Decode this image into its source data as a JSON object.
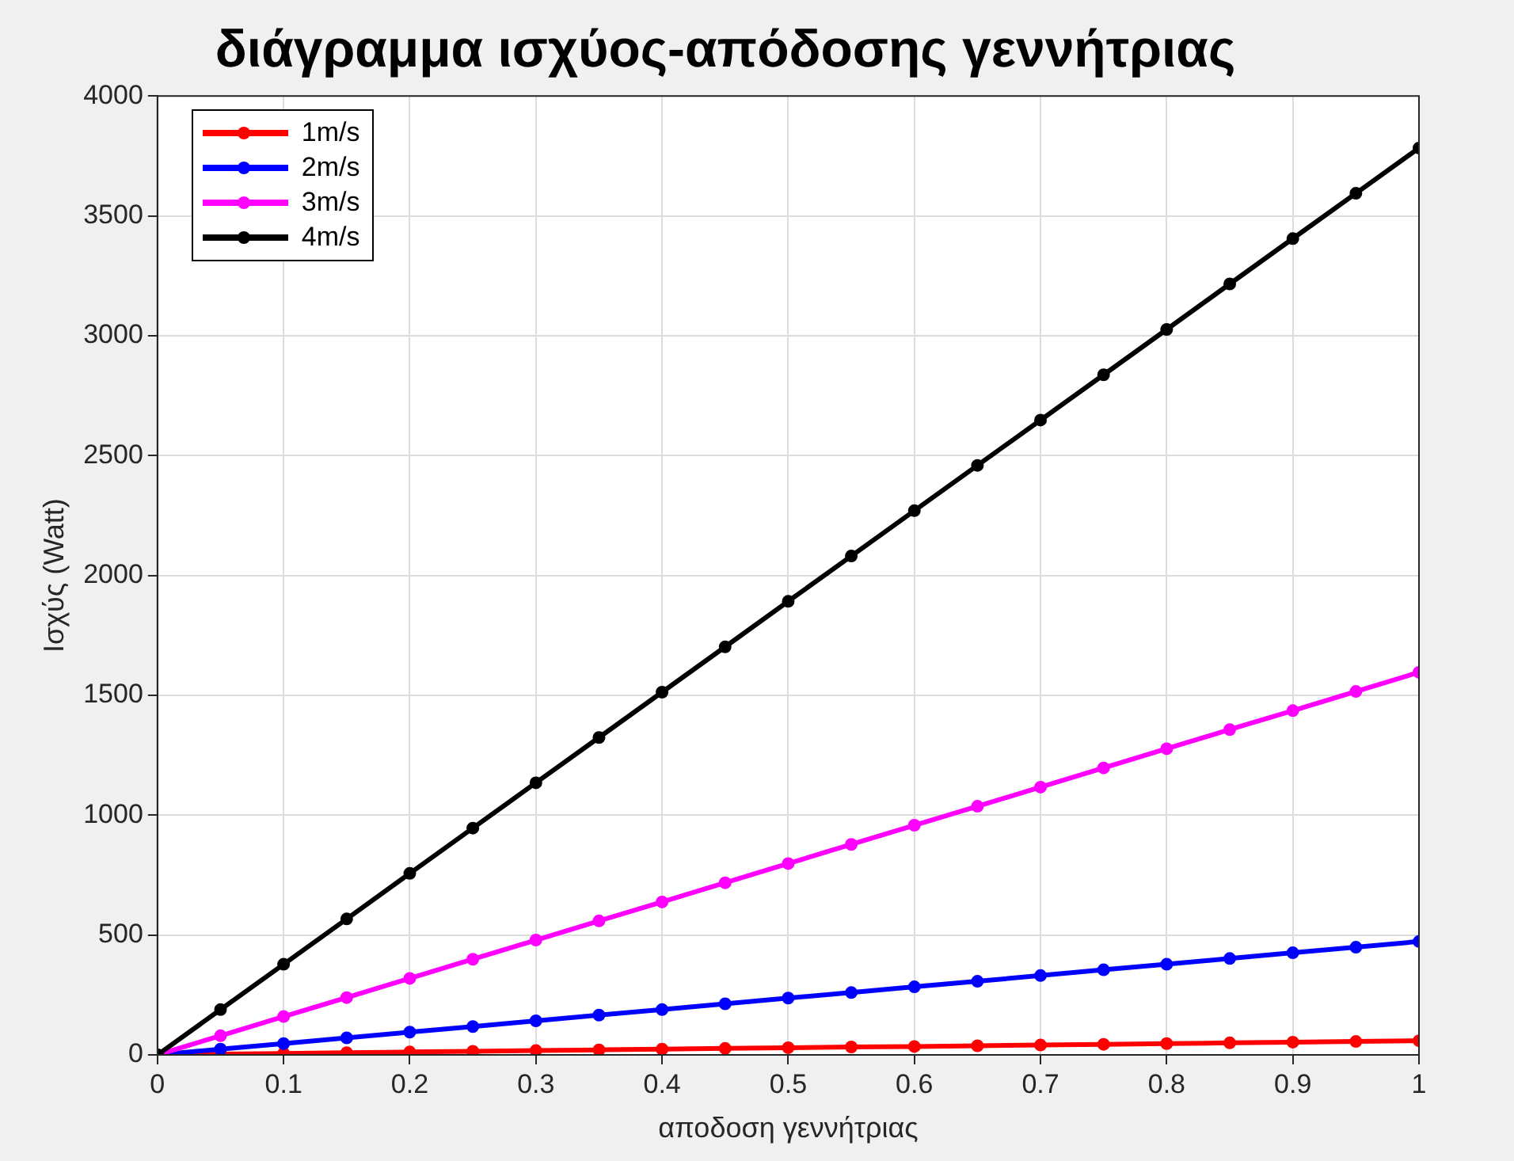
{
  "chart_data": {
    "type": "line",
    "title": "διάγραμμα ισχύος-απόδοσης γεννήτριας",
    "xlabel": "αποδοση γεννήτριας",
    "ylabel": "Ισχύς (Watt)",
    "x": [
      0,
      0.05,
      0.1,
      0.15,
      0.2,
      0.25,
      0.3,
      0.35,
      0.4,
      0.45,
      0.5,
      0.55,
      0.6,
      0.65,
      0.7,
      0.75,
      0.8,
      0.85,
      0.9,
      0.95,
      1
    ],
    "series": [
      {
        "name": "1m/s",
        "color": "#ff0000",
        "values": [
          0,
          3,
          6,
          9,
          12,
          15,
          18,
          21,
          24,
          27,
          30,
          33,
          35,
          38,
          41,
          44,
          47,
          50,
          53,
          56,
          59
        ]
      },
      {
        "name": "2m/s",
        "color": "#0000ff",
        "values": [
          0,
          24,
          47,
          71,
          95,
          118,
          142,
          166,
          189,
          213,
          237,
          260,
          284,
          307,
          331,
          355,
          378,
          402,
          426,
          449,
          473
        ]
      },
      {
        "name": "3m/s",
        "color": "#ff00ff",
        "values": [
          0,
          80,
          160,
          239,
          319,
          399,
          479,
          559,
          638,
          718,
          798,
          878,
          958,
          1037,
          1117,
          1197,
          1277,
          1357,
          1436,
          1516,
          1596
        ]
      },
      {
        "name": "4m/s",
        "color": "#000000",
        "values": [
          0,
          189,
          378,
          567,
          757,
          946,
          1135,
          1324,
          1513,
          1702,
          1892,
          2081,
          2270,
          2459,
          2648,
          2837,
          3026,
          3216,
          3405,
          3594,
          3783
        ]
      }
    ],
    "xlim": [
      0,
      1
    ],
    "xticks": [
      0,
      0.1,
      0.2,
      0.3,
      0.4,
      0.5,
      0.6,
      0.7,
      0.8,
      0.9,
      1
    ],
    "ylim": [
      0,
      4000
    ],
    "yticks": [
      0,
      500,
      1000,
      1500,
      2000,
      2500,
      3000,
      3500,
      4000
    ],
    "grid": true,
    "legend": "top left",
    "marker": "circle",
    "line_style": "solid"
  }
}
